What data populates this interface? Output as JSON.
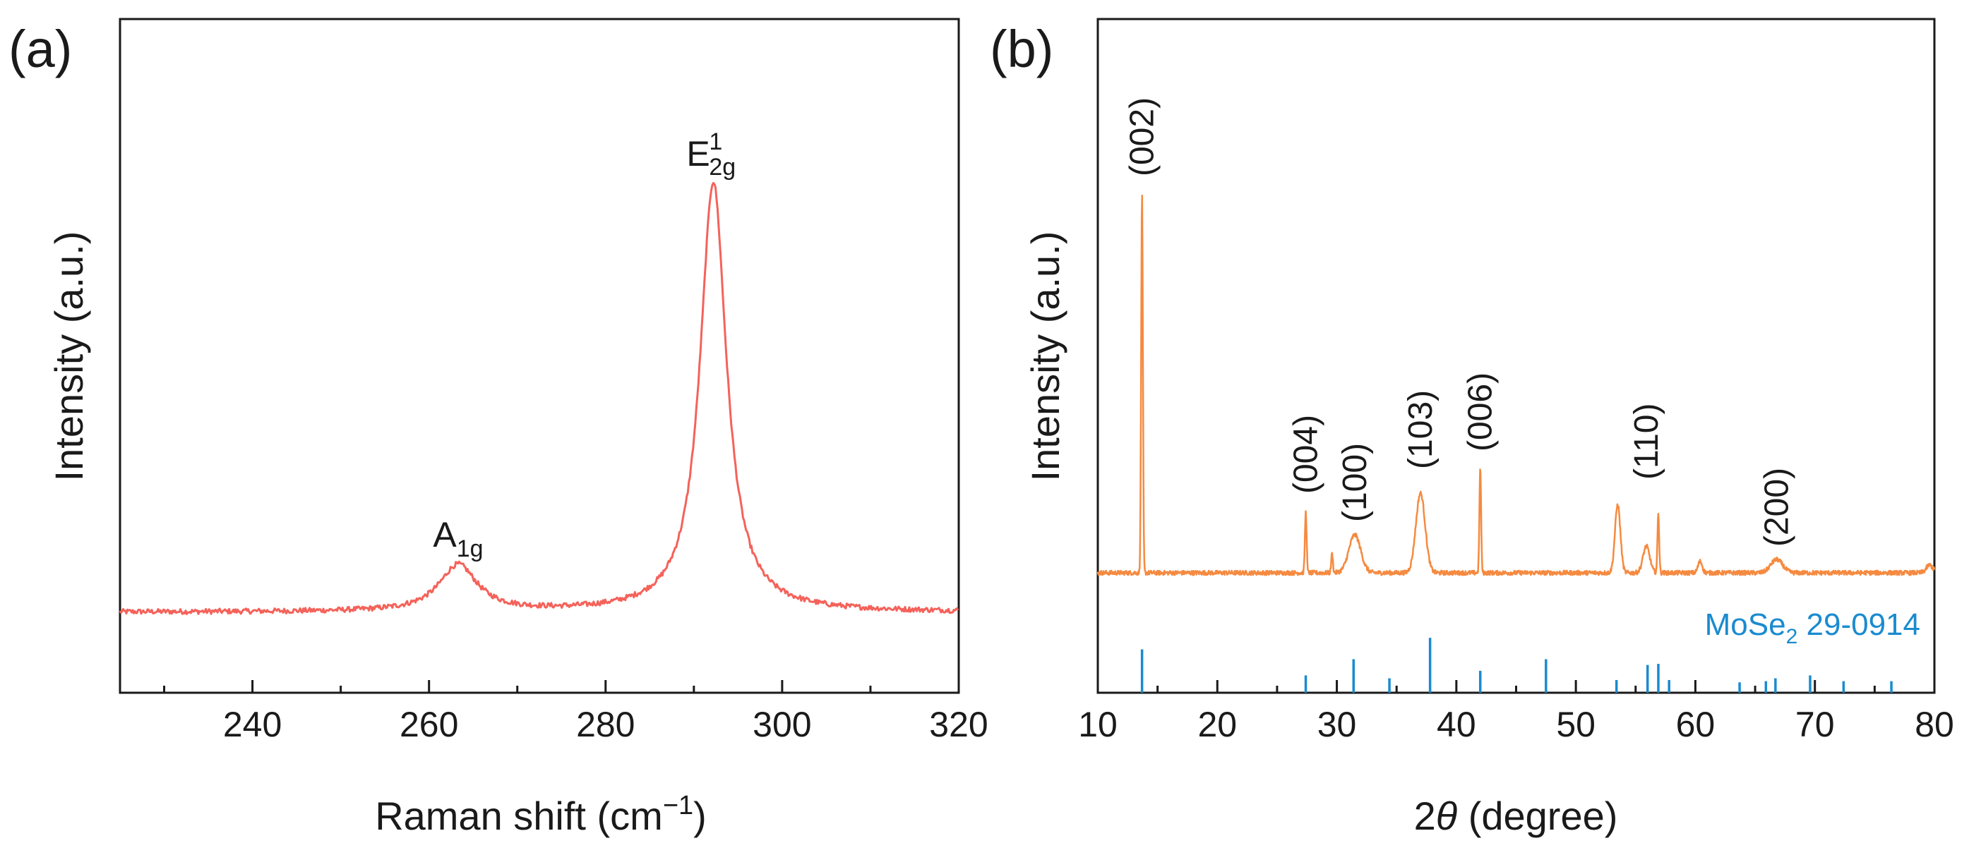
{
  "chart_data": [
    {
      "panel_label": "(a)",
      "type": "line",
      "title": "",
      "xlabel": "Raman shift (cm",
      "xlabel_sup": "−1",
      "xlabel_end": ")",
      "ylabel": "Intensity (a.u.)",
      "xlim": [
        225,
        320
      ],
      "ylim": [
        0,
        1.0
      ],
      "xticks": [
        240,
        260,
        280,
        300,
        320
      ],
      "yticks_shown": false,
      "line_color": "#f4625a",
      "series": [
        {
          "name": "Raman spectrum",
          "peaks": [
            {
              "center": 263.3,
              "height": 0.108,
              "width": 2.6
            },
            {
              "center": 292.2,
              "height": 1.0,
              "width": 1.8
            }
          ],
          "baseline": 0.02
        }
      ],
      "annotations": [
        {
          "base": "A",
          "sub": "1g",
          "sup": "",
          "x": 263.3
        },
        {
          "base": "E",
          "sub": "2g",
          "sup": "1",
          "x": 292.2
        }
      ]
    },
    {
      "panel_label": "(b)",
      "type": "line",
      "title": "",
      "xlabel": "2θ (degree)",
      "xlabel_prefix": "2",
      "xlabel_theta": "θ",
      "xlabel_suffix": " (degree)",
      "ylabel": "Intensity (a.u.)",
      "xlim": [
        10,
        80
      ],
      "xticks": [
        10,
        20,
        30,
        40,
        50,
        60,
        70,
        80
      ],
      "yticks_shown": false,
      "line_color": "#f58a40",
      "ref_color": "#1a8bcf",
      "series": [
        {
          "name": "XRD pattern",
          "peaks": [
            {
              "two_theta": 13.7,
              "intensity": 1.0,
              "width": 0.1
            },
            {
              "two_theta": 27.4,
              "intensity": 0.16,
              "width": 0.1
            },
            {
              "two_theta": 29.6,
              "intensity": 0.05,
              "width": 0.1
            },
            {
              "two_theta": 31.5,
              "intensity": 0.1,
              "width": 0.7
            },
            {
              "two_theta": 37.0,
              "intensity": 0.21,
              "width": 0.55
            },
            {
              "two_theta": 42.0,
              "intensity": 0.28,
              "width": 0.1
            },
            {
              "two_theta": 53.5,
              "intensity": 0.18,
              "width": 0.32
            },
            {
              "two_theta": 55.9,
              "intensity": 0.07,
              "width": 0.4
            },
            {
              "two_theta": 56.9,
              "intensity": 0.16,
              "width": 0.1
            },
            {
              "two_theta": 60.4,
              "intensity": 0.03,
              "width": 0.25
            },
            {
              "two_theta": 66.8,
              "intensity": 0.035,
              "width": 0.7
            },
            {
              "two_theta": 79.6,
              "intensity": 0.02,
              "width": 0.4
            }
          ]
        }
      ],
      "peak_labels": [
        {
          "label": "(002)",
          "two_theta": 13.7
        },
        {
          "label": "(004)",
          "two_theta": 27.4
        },
        {
          "label": "(100)",
          "two_theta": 31.5
        },
        {
          "label": "(103)",
          "two_theta": 37.0
        },
        {
          "label": "(006)",
          "two_theta": 42.0
        },
        {
          "label": "(110)",
          "two_theta": 55.9
        },
        {
          "label": "(200)",
          "two_theta": 66.8
        }
      ],
      "reference": {
        "compound": "MoSe",
        "sub": "2",
        "card": " 29-0914",
        "lines": [
          {
            "two_theta": 13.7,
            "rel": 0.75
          },
          {
            "two_theta": 27.4,
            "rel": 0.3
          },
          {
            "two_theta": 31.4,
            "rel": 0.58
          },
          {
            "two_theta": 34.4,
            "rel": 0.25
          },
          {
            "two_theta": 37.8,
            "rel": 0.95
          },
          {
            "two_theta": 42.0,
            "rel": 0.38
          },
          {
            "two_theta": 47.5,
            "rel": 0.58
          },
          {
            "two_theta": 53.4,
            "rel": 0.22
          },
          {
            "two_theta": 56.0,
            "rel": 0.48
          },
          {
            "two_theta": 56.9,
            "rel": 0.5
          },
          {
            "two_theta": 57.8,
            "rel": 0.22
          },
          {
            "two_theta": 63.7,
            "rel": 0.18
          },
          {
            "two_theta": 65.9,
            "rel": 0.2
          },
          {
            "two_theta": 66.7,
            "rel": 0.25
          },
          {
            "two_theta": 69.6,
            "rel": 0.3
          },
          {
            "two_theta": 72.4,
            "rel": 0.2
          },
          {
            "two_theta": 76.4,
            "rel": 0.2
          }
        ]
      }
    }
  ]
}
